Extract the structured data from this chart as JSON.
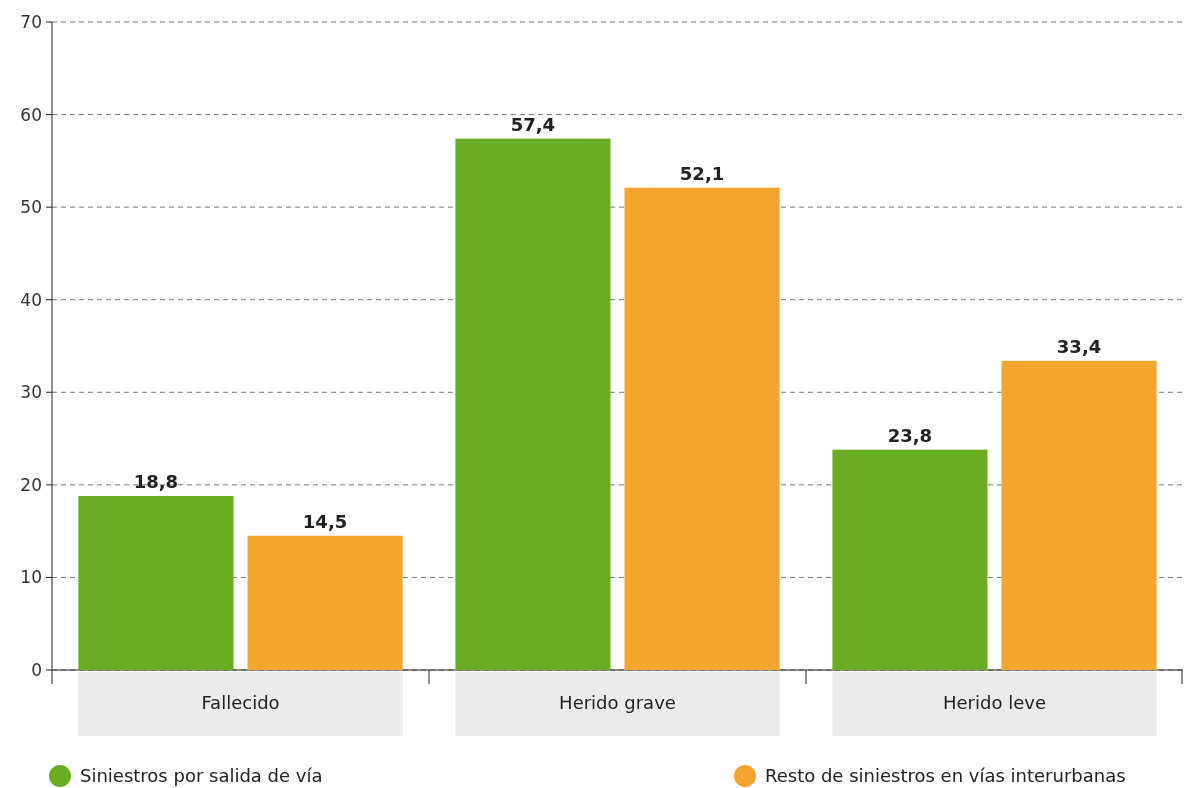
{
  "chart_data": {
    "type": "bar",
    "categories": [
      "Fallecido",
      "Herido grave",
      "Herido leve"
    ],
    "series": [
      {
        "name": "Siniestros por salida de vía",
        "color": "#6aad23",
        "values": [
          18.8,
          57.4,
          23.8
        ],
        "value_labels": [
          "18,8",
          "57,4",
          "23,8"
        ]
      },
      {
        "name": "Resto de siniestros en vías interurbanas",
        "color": "#f4a52d",
        "values": [
          14.5,
          52.1,
          33.4
        ],
        "value_labels": [
          "14,5",
          "52,1",
          "33,4"
        ]
      }
    ],
    "ylim": [
      0,
      70
    ],
    "yticks": [
      0,
      10,
      20,
      30,
      40,
      50,
      60,
      70
    ],
    "grid": "y",
    "legend": "bottom"
  }
}
